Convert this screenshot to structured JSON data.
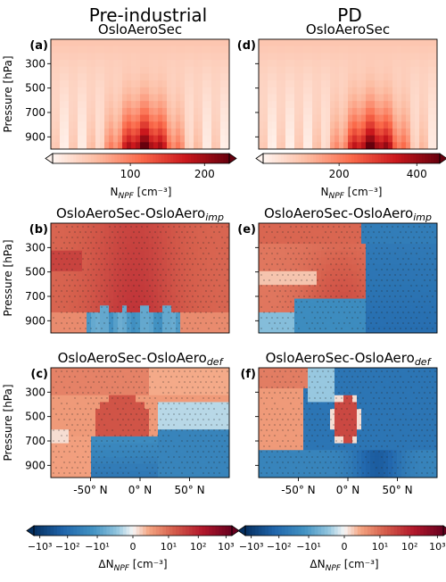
{
  "columns": [
    "Pre-industrial",
    "PD"
  ],
  "chart_data": [
    {
      "panel": "a",
      "type": "heatmap",
      "label": "(a)",
      "title": "OsloAeroSec",
      "column": "Pre-industrial",
      "quantity": "NPF",
      "scale": "linear",
      "cmap": "Reds",
      "ylabel": "Pressure [hPa]",
      "yticks": [
        300,
        500,
        700,
        900
      ],
      "xticks": [],
      "stippling": false
    },
    {
      "panel": "d",
      "type": "heatmap",
      "label": "(d)",
      "title": "OsloAeroSec",
      "column": "PD",
      "quantity": "NPF",
      "scale": "linear",
      "cmap": "Reds",
      "ylabel": "",
      "yticks": [
        300,
        500,
        700,
        900
      ],
      "xticks": [],
      "stippling": false
    },
    {
      "panel": "b",
      "type": "heatmap",
      "label": "(b)",
      "title": "OsloAeroSec-OsloAero",
      "title_sub": "imp",
      "column": "Pre-industrial",
      "quantity": "ΔNPF",
      "scale": "symlog",
      "cmap": "RdBu_r",
      "ylabel": "Pressure [hPa]",
      "yticks": [
        300,
        500,
        700,
        900
      ],
      "xticks": [],
      "stippling": true
    },
    {
      "panel": "e",
      "type": "heatmap",
      "label": "(e)",
      "title": "OsloAeroSec-OsloAero",
      "title_sub": "imp",
      "column": "PD",
      "quantity": "ΔNPF",
      "scale": "symlog",
      "cmap": "RdBu_r",
      "ylabel": "",
      "yticks": [
        300,
        500,
        700,
        900
      ],
      "xticks": [],
      "stippling": true
    },
    {
      "panel": "c",
      "type": "heatmap",
      "label": "(c)",
      "title": "OsloAeroSec-OsloAero",
      "title_sub": "def",
      "column": "Pre-industrial",
      "quantity": "ΔNPF",
      "scale": "symlog",
      "cmap": "RdBu_r",
      "ylabel": "Pressure [hPa]",
      "yticks": [
        300,
        500,
        700,
        900
      ],
      "xticks": [
        "-50° N",
        "0° N",
        "50° N"
      ],
      "stippling": true
    },
    {
      "panel": "f",
      "type": "heatmap",
      "label": "(f)",
      "title": "OsloAeroSec-OsloAero",
      "title_sub": "def",
      "column": "PD",
      "quantity": "ΔNPF",
      "scale": "symlog",
      "cmap": "RdBu_r",
      "ylabel": "",
      "yticks": [
        300,
        500,
        700,
        900
      ],
      "xticks": [
        "-50° N",
        "0° N",
        "50° N"
      ],
      "stippling": true
    }
  ],
  "colorbars": [
    {
      "id": "cb-pi",
      "cmap": "Reds",
      "extend": "both",
      "ticks": [
        "100",
        "200"
      ],
      "label_main": "N",
      "label_sub": "NPF",
      "label_unit": " [cm⁻³]"
    },
    {
      "id": "cb-pd",
      "cmap": "Reds",
      "extend": "both",
      "ticks": [
        "200",
        "400"
      ],
      "label_main": "N",
      "label_sub": "NPF",
      "label_unit": " [cm⁻³]"
    },
    {
      "id": "cb-diff-l",
      "cmap": "RdBu_r",
      "extend": "both",
      "ticks": [
        "−10³",
        "−10²",
        "−10¹",
        "0",
        "10¹",
        "10²",
        "10³"
      ],
      "label_main": "ΔN",
      "label_sub": "NPF",
      "label_unit": " [cm⁻³]"
    },
    {
      "id": "cb-diff-r",
      "cmap": "RdBu_r",
      "extend": "both",
      "ticks": [
        "−10³",
        "−10²",
        "−10¹",
        "0",
        "10¹",
        "10²",
        "10³"
      ],
      "label_main": "ΔN",
      "label_sub": "NPF",
      "label_unit": " [cm⁻³]"
    }
  ]
}
